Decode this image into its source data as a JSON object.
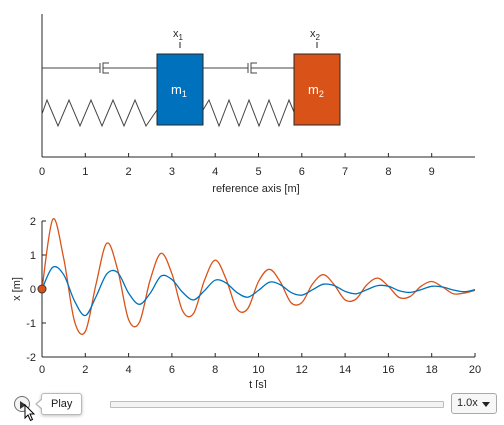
{
  "scene": {
    "masses": [
      {
        "label": "m",
        "sub": "1",
        "position_m": 3.2,
        "color": "#0072BD"
      },
      {
        "label": "m",
        "sub": "2",
        "position_m": 6.3,
        "color": "#D95319"
      }
    ],
    "markers": [
      {
        "label": "x",
        "sub": "1"
      },
      {
        "label": "x",
        "sub": "2"
      }
    ],
    "axis": {
      "xlabel": "reference axis [m]",
      "ticks": [
        "0",
        "1",
        "2",
        "3",
        "4",
        "5",
        "6",
        "7",
        "8",
        "9"
      ],
      "xlim": [
        0,
        10
      ]
    }
  },
  "chart_data": {
    "type": "line",
    "xlabel": "t [s]",
    "ylabel": "x [m]",
    "xlim": [
      0,
      20
    ],
    "ylim": [
      -2,
      2
    ],
    "x_ticks": [
      "0",
      "2",
      "4",
      "6",
      "8",
      "10",
      "12",
      "14",
      "16",
      "18",
      "20"
    ],
    "y_ticks": [
      "2",
      "1",
      "0",
      "-1",
      "-2"
    ],
    "grid": false,
    "series": [
      {
        "color": "#0072BD",
        "x": [
          0,
          0.5,
          1.0,
          1.5,
          2.0,
          2.5,
          3.0,
          3.5,
          4.0,
          4.5,
          5.0,
          5.5,
          6.0,
          6.5,
          7.0,
          7.5,
          8.0,
          8.5,
          9.0,
          9.5,
          10.0,
          10.5,
          11.0,
          11.5,
          12.0,
          12.5,
          13.0,
          13.5,
          14.0,
          14.5,
          15.0,
          15.5,
          16.0,
          16.5,
          17.0,
          17.5,
          18.0,
          18.5,
          19.0,
          19.5,
          20.0
        ],
        "y": [
          0,
          0.64,
          0.42,
          -0.35,
          -0.78,
          -0.22,
          0.45,
          0.48,
          -0.12,
          -0.45,
          -0.12,
          0.38,
          0.28,
          -0.1,
          -0.32,
          -0.05,
          0.26,
          0.18,
          -0.1,
          -0.24,
          -0.04,
          0.2,
          0.13,
          -0.1,
          -0.18,
          -0.02,
          0.14,
          0.1,
          -0.07,
          -0.14,
          -0.02,
          0.1,
          0.08,
          -0.05,
          -0.1,
          -0.02,
          0.08,
          0.06,
          -0.03,
          -0.08,
          -0.02
        ]
      },
      {
        "color": "#D95319",
        "x": [
          0,
          0.5,
          1.0,
          1.5,
          2.0,
          2.5,
          3.0,
          3.5,
          4.0,
          4.5,
          5.0,
          5.5,
          6.0,
          6.5,
          7.0,
          7.5,
          8.0,
          8.5,
          9.0,
          9.5,
          10.0,
          10.5,
          11.0,
          11.5,
          12.0,
          12.5,
          13.0,
          13.5,
          14.0,
          14.5,
          15.0,
          15.5,
          16.0,
          16.5,
          17.0,
          17.5,
          18.0,
          18.5,
          19.0,
          19.5,
          20.0
        ],
        "y": [
          0,
          2.05,
          0.9,
          -0.95,
          -1.25,
          0.15,
          1.35,
          0.55,
          -0.9,
          -0.98,
          0.28,
          1.05,
          0.45,
          -0.65,
          -0.72,
          0.25,
          0.85,
          0.3,
          -0.58,
          -0.58,
          0.22,
          0.58,
          0.22,
          -0.4,
          -0.4,
          0.15,
          0.42,
          0.12,
          -0.32,
          -0.3,
          0.12,
          0.32,
          0.08,
          -0.25,
          -0.22,
          0.08,
          0.22,
          0.06,
          -0.14,
          -0.12,
          -0.04
        ]
      }
    ],
    "current_t": 0
  },
  "controls": {
    "play_tooltip": "Play",
    "speed_value": "1.0x"
  }
}
